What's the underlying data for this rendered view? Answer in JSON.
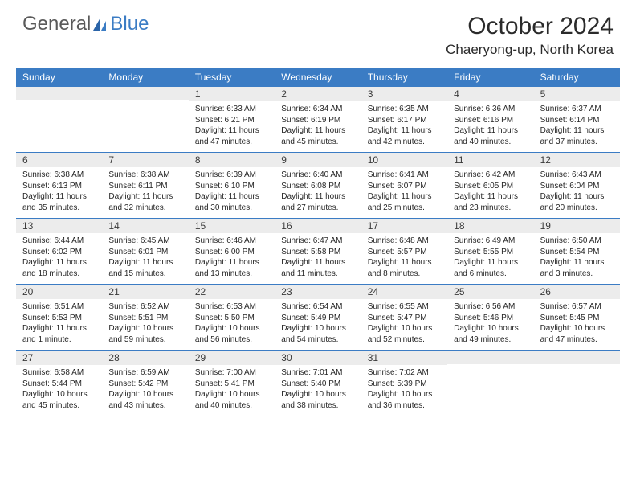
{
  "logo": {
    "general": "General",
    "blue": "Blue"
  },
  "title": "October 2024",
  "location": "Chaeryong-up, North Korea",
  "colors": {
    "header_bg": "#3b7cc4",
    "header_text": "#ffffff",
    "daynum_bg": "#ececec",
    "border": "#3b7cc4",
    "text": "#262626"
  },
  "weekdays": [
    "Sunday",
    "Monday",
    "Tuesday",
    "Wednesday",
    "Thursday",
    "Friday",
    "Saturday"
  ],
  "weeks": [
    [
      {
        "n": "",
        "sr": "",
        "ss": "",
        "dl": ""
      },
      {
        "n": "",
        "sr": "",
        "ss": "",
        "dl": ""
      },
      {
        "n": "1",
        "sr": "Sunrise: 6:33 AM",
        "ss": "Sunset: 6:21 PM",
        "dl": "Daylight: 11 hours and 47 minutes."
      },
      {
        "n": "2",
        "sr": "Sunrise: 6:34 AM",
        "ss": "Sunset: 6:19 PM",
        "dl": "Daylight: 11 hours and 45 minutes."
      },
      {
        "n": "3",
        "sr": "Sunrise: 6:35 AM",
        "ss": "Sunset: 6:17 PM",
        "dl": "Daylight: 11 hours and 42 minutes."
      },
      {
        "n": "4",
        "sr": "Sunrise: 6:36 AM",
        "ss": "Sunset: 6:16 PM",
        "dl": "Daylight: 11 hours and 40 minutes."
      },
      {
        "n": "5",
        "sr": "Sunrise: 6:37 AM",
        "ss": "Sunset: 6:14 PM",
        "dl": "Daylight: 11 hours and 37 minutes."
      }
    ],
    [
      {
        "n": "6",
        "sr": "Sunrise: 6:38 AM",
        "ss": "Sunset: 6:13 PM",
        "dl": "Daylight: 11 hours and 35 minutes."
      },
      {
        "n": "7",
        "sr": "Sunrise: 6:38 AM",
        "ss": "Sunset: 6:11 PM",
        "dl": "Daylight: 11 hours and 32 minutes."
      },
      {
        "n": "8",
        "sr": "Sunrise: 6:39 AM",
        "ss": "Sunset: 6:10 PM",
        "dl": "Daylight: 11 hours and 30 minutes."
      },
      {
        "n": "9",
        "sr": "Sunrise: 6:40 AM",
        "ss": "Sunset: 6:08 PM",
        "dl": "Daylight: 11 hours and 27 minutes."
      },
      {
        "n": "10",
        "sr": "Sunrise: 6:41 AM",
        "ss": "Sunset: 6:07 PM",
        "dl": "Daylight: 11 hours and 25 minutes."
      },
      {
        "n": "11",
        "sr": "Sunrise: 6:42 AM",
        "ss": "Sunset: 6:05 PM",
        "dl": "Daylight: 11 hours and 23 minutes."
      },
      {
        "n": "12",
        "sr": "Sunrise: 6:43 AM",
        "ss": "Sunset: 6:04 PM",
        "dl": "Daylight: 11 hours and 20 minutes."
      }
    ],
    [
      {
        "n": "13",
        "sr": "Sunrise: 6:44 AM",
        "ss": "Sunset: 6:02 PM",
        "dl": "Daylight: 11 hours and 18 minutes."
      },
      {
        "n": "14",
        "sr": "Sunrise: 6:45 AM",
        "ss": "Sunset: 6:01 PM",
        "dl": "Daylight: 11 hours and 15 minutes."
      },
      {
        "n": "15",
        "sr": "Sunrise: 6:46 AM",
        "ss": "Sunset: 6:00 PM",
        "dl": "Daylight: 11 hours and 13 minutes."
      },
      {
        "n": "16",
        "sr": "Sunrise: 6:47 AM",
        "ss": "Sunset: 5:58 PM",
        "dl": "Daylight: 11 hours and 11 minutes."
      },
      {
        "n": "17",
        "sr": "Sunrise: 6:48 AM",
        "ss": "Sunset: 5:57 PM",
        "dl": "Daylight: 11 hours and 8 minutes."
      },
      {
        "n": "18",
        "sr": "Sunrise: 6:49 AM",
        "ss": "Sunset: 5:55 PM",
        "dl": "Daylight: 11 hours and 6 minutes."
      },
      {
        "n": "19",
        "sr": "Sunrise: 6:50 AM",
        "ss": "Sunset: 5:54 PM",
        "dl": "Daylight: 11 hours and 3 minutes."
      }
    ],
    [
      {
        "n": "20",
        "sr": "Sunrise: 6:51 AM",
        "ss": "Sunset: 5:53 PM",
        "dl": "Daylight: 11 hours and 1 minute."
      },
      {
        "n": "21",
        "sr": "Sunrise: 6:52 AM",
        "ss": "Sunset: 5:51 PM",
        "dl": "Daylight: 10 hours and 59 minutes."
      },
      {
        "n": "22",
        "sr": "Sunrise: 6:53 AM",
        "ss": "Sunset: 5:50 PM",
        "dl": "Daylight: 10 hours and 56 minutes."
      },
      {
        "n": "23",
        "sr": "Sunrise: 6:54 AM",
        "ss": "Sunset: 5:49 PM",
        "dl": "Daylight: 10 hours and 54 minutes."
      },
      {
        "n": "24",
        "sr": "Sunrise: 6:55 AM",
        "ss": "Sunset: 5:47 PM",
        "dl": "Daylight: 10 hours and 52 minutes."
      },
      {
        "n": "25",
        "sr": "Sunrise: 6:56 AM",
        "ss": "Sunset: 5:46 PM",
        "dl": "Daylight: 10 hours and 49 minutes."
      },
      {
        "n": "26",
        "sr": "Sunrise: 6:57 AM",
        "ss": "Sunset: 5:45 PM",
        "dl": "Daylight: 10 hours and 47 minutes."
      }
    ],
    [
      {
        "n": "27",
        "sr": "Sunrise: 6:58 AM",
        "ss": "Sunset: 5:44 PM",
        "dl": "Daylight: 10 hours and 45 minutes."
      },
      {
        "n": "28",
        "sr": "Sunrise: 6:59 AM",
        "ss": "Sunset: 5:42 PM",
        "dl": "Daylight: 10 hours and 43 minutes."
      },
      {
        "n": "29",
        "sr": "Sunrise: 7:00 AM",
        "ss": "Sunset: 5:41 PM",
        "dl": "Daylight: 10 hours and 40 minutes."
      },
      {
        "n": "30",
        "sr": "Sunrise: 7:01 AM",
        "ss": "Sunset: 5:40 PM",
        "dl": "Daylight: 10 hours and 38 minutes."
      },
      {
        "n": "31",
        "sr": "Sunrise: 7:02 AM",
        "ss": "Sunset: 5:39 PM",
        "dl": "Daylight: 10 hours and 36 minutes."
      },
      {
        "n": "",
        "sr": "",
        "ss": "",
        "dl": ""
      },
      {
        "n": "",
        "sr": "",
        "ss": "",
        "dl": ""
      }
    ]
  ]
}
